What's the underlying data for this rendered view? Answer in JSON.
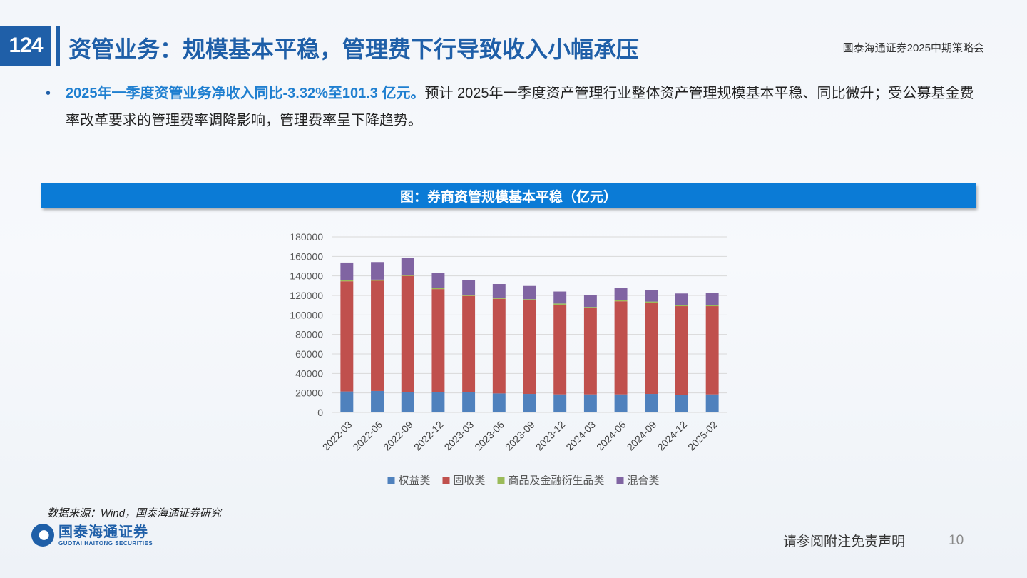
{
  "header": {
    "slide_number": "124",
    "title": "资管业务：规模基本平稳，管理费下行导致收入小幅承压",
    "event": "国泰海通证券2025中期策略会"
  },
  "bullet": {
    "dot": "•",
    "highlight": "2025年一季度资管业务净收入同比-3.32%至101.3 亿元。",
    "rest": "预计 2025年一季度资产管理行业整体资产管理规模基本平稳、同比微升；受公募基金费率改革要求的管理费率调降影响，管理费率呈下降趋势。"
  },
  "figure": {
    "title": "图：券商资管规模基本平稳（亿元）"
  },
  "chart_data": {
    "type": "bar",
    "stacked": true,
    "categories": [
      "2022-03",
      "2022-06",
      "2022-09",
      "2022-12",
      "2023-03",
      "2023-06",
      "2023-09",
      "2023-12",
      "2024-03",
      "2024-06",
      "2024-09",
      "2024-12",
      "2025-02"
    ],
    "series": [
      {
        "name": "权益类",
        "color": "#4f81bd",
        "values": [
          21500,
          22000,
          21000,
          20500,
          21000,
          19500,
          19000,
          18500,
          18500,
          18500,
          19000,
          18000,
          18500
        ]
      },
      {
        "name": "固收类",
        "color": "#c0504d",
        "values": [
          113000,
          113000,
          119000,
          106000,
          98500,
          97000,
          96000,
          92000,
          88500,
          95500,
          93500,
          91000,
          90500
        ]
      },
      {
        "name": "商品及金融衍生品类",
        "color": "#9bbb59",
        "values": [
          1200,
          1200,
          1200,
          1200,
          1200,
          1200,
          1200,
          1200,
          1200,
          1200,
          1200,
          1200,
          1200
        ]
      },
      {
        "name": "混合类",
        "color": "#8064a2",
        "values": [
          18000,
          18000,
          17500,
          15000,
          14800,
          14000,
          13500,
          12300,
          12300,
          12300,
          12000,
          11800,
          12000
        ]
      }
    ],
    "y_ticks": [
      "0",
      "20000",
      "40000",
      "60000",
      "80000",
      "100000",
      "120000",
      "140000",
      "160000",
      "180000"
    ],
    "ylim": [
      0,
      180000
    ],
    "grid": true,
    "legend_position": "bottom"
  },
  "footer": {
    "source": "数据来源：Wind，国泰海通证券研究",
    "logo_cn": "国泰海通证券",
    "logo_en": "GUOTAI HAITONG SECURITIES",
    "disclaimer": "请参阅附注免责声明",
    "page": "10"
  }
}
